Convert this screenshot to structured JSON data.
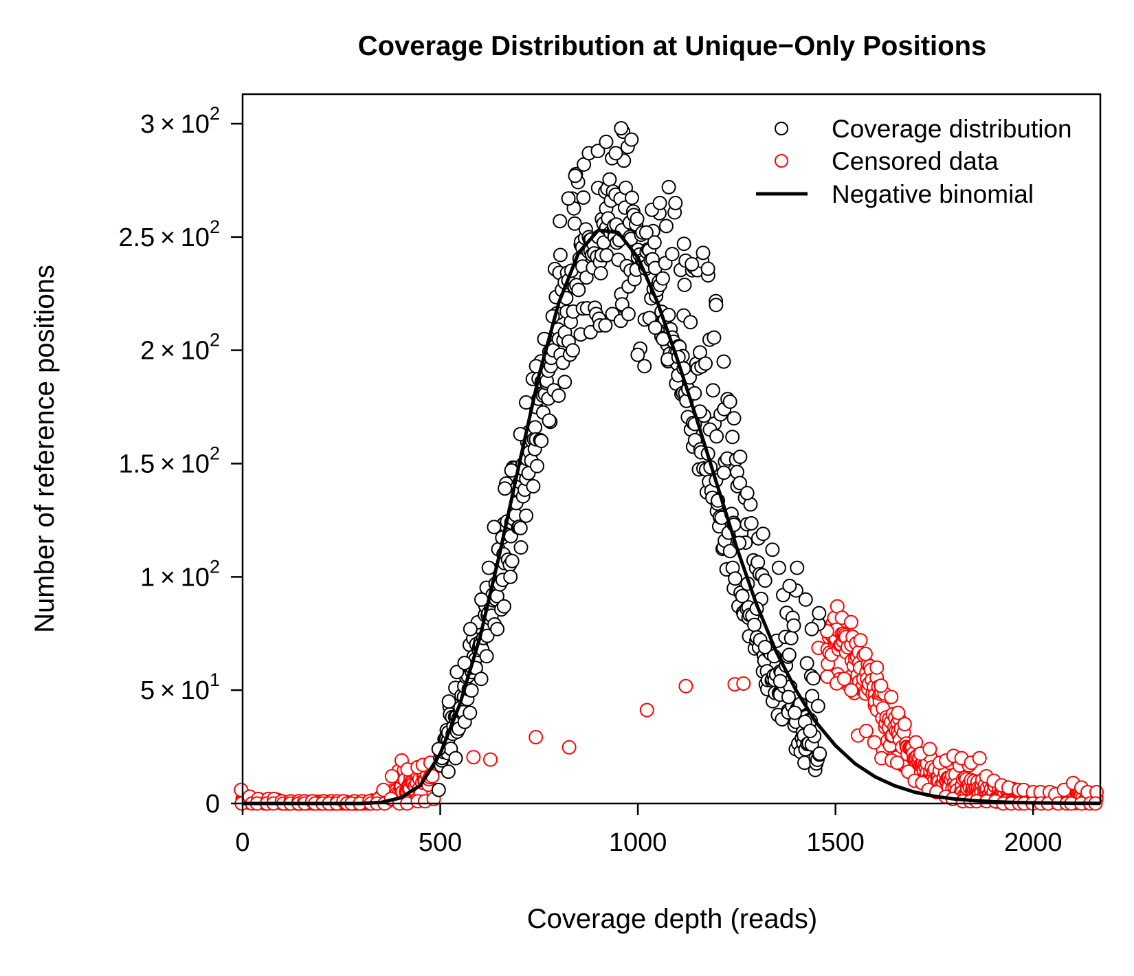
{
  "chart_data": {
    "type": "scatter",
    "title": "Coverage Distribution at Unique−Only Positions",
    "xlabel": "Coverage depth (reads)",
    "ylabel": "Number of reference positions",
    "xlim": [
      0,
      2170
    ],
    "ylim": [
      0,
      300
    ],
    "x_ticks": [
      0,
      500,
      1000,
      1500,
      2000
    ],
    "x_tick_labels": [
      "0",
      "500",
      "1000",
      "1500",
      "2000"
    ],
    "y_ticks": [
      0,
      50,
      100,
      150,
      200,
      250,
      300
    ],
    "y_tick_labels": [
      {
        "mantissa": "0",
        "exponent": ""
      },
      {
        "mantissa": "5",
        "exponent": "1"
      },
      {
        "mantissa": "1",
        "exponent": "2"
      },
      {
        "mantissa": "1.5",
        "exponent": "2"
      },
      {
        "mantissa": "2",
        "exponent": "2"
      },
      {
        "mantissa": "2.5",
        "exponent": "2"
      },
      {
        "mantissa": "3",
        "exponent": "2"
      }
    ],
    "grid": false,
    "legend_position": "top-right",
    "legend": [
      {
        "label": "Coverage distribution",
        "marker": "circle",
        "color": "#000000"
      },
      {
        "label": "Censored data",
        "marker": "circle",
        "color": "#ff0000"
      },
      {
        "label": "Negative binomial",
        "marker": "line",
        "color": "#000000"
      }
    ],
    "series": [
      {
        "name": "Coverage distribution",
        "color": "#000000",
        "x": [
          500,
          520,
          540,
          560,
          580,
          600,
          620,
          640,
          660,
          680,
          700,
          720,
          740,
          760,
          780,
          800,
          820,
          840,
          860,
          880,
          900,
          920,
          940,
          960,
          980,
          1000,
          1020,
          1040,
          1060,
          1080,
          1100,
          1120,
          1140,
          1160,
          1180,
          1200,
          1220,
          1240,
          1260,
          1280,
          1300,
          1320,
          1340,
          1360,
          1380,
          1400,
          1420,
          1440,
          1460
        ],
        "y": [
          20,
          28,
          37,
          47,
          58,
          70,
          83,
          97,
          110,
          124,
          138,
          152,
          166,
          180,
          193,
          205,
          217,
          228,
          237,
          244,
          250,
          254,
          255,
          253,
          250,
          244,
          236,
          227,
          217,
          205,
          194,
          181,
          168,
          155,
          142,
          129,
          116,
          104,
          93,
          82,
          72,
          63,
          55,
          48,
          41,
          36,
          30,
          26,
          22
        ],
        "y_high": [
          24,
          45,
          58,
          62,
          77,
          90,
          104,
          122,
          139,
          147,
          163,
          177,
          193,
          205,
          215,
          257,
          267,
          277,
          282,
          287,
          288,
          292,
          287,
          298,
          293,
          258,
          252,
          262,
          265,
          272,
          265,
          247,
          238,
          243,
          236,
          220,
          195,
          170,
          153,
          137,
          117,
          119,
          112,
          104,
          96,
          104,
          90,
          77,
          84
        ],
        "y_low": [
          6,
          14,
          20,
          36,
          40,
          55,
          65,
          77,
          87,
          100,
          113,
          127,
          140,
          160,
          169,
          180,
          186,
          200,
          207,
          208,
          211,
          211,
          216,
          213,
          216,
          198,
          193,
          210,
          205,
          196,
          197,
          192,
          181,
          173,
          165,
          162,
          146,
          123,
          115,
          97,
          86,
          69,
          65,
          54,
          47,
          40,
          36,
          32,
          43
        ]
      },
      {
        "name": "Censored data",
        "color": "#ff0000",
        "x": [
          0,
          20,
          40,
          60,
          80,
          100,
          120,
          140,
          160,
          180,
          200,
          220,
          240,
          260,
          280,
          300,
          320,
          340,
          360,
          380,
          400,
          420,
          440,
          460,
          480,
          1480,
          1500,
          1520,
          1540,
          1560,
          1580,
          1600,
          1620,
          1640,
          1660,
          1680,
          1700,
          1720,
          1740,
          1760,
          1780,
          1800,
          1820,
          1840,
          1860,
          1880,
          1900,
          1920,
          1940,
          1960,
          1980,
          2000,
          2020,
          2040,
          2060,
          2080,
          2100,
          2120,
          2140,
          2160
        ],
        "y": [
          2,
          1,
          1,
          1,
          1,
          0,
          0,
          0,
          0,
          0,
          0,
          0,
          0,
          0,
          0,
          0,
          0,
          1,
          2,
          4,
          7,
          8,
          9,
          10,
          12,
          68,
          72,
          74,
          70,
          62,
          55,
          48,
          42,
          36,
          30,
          25,
          20,
          16,
          14,
          12,
          10,
          9,
          8,
          7,
          6,
          5,
          5,
          4,
          4,
          3,
          3,
          2,
          2,
          2,
          2,
          2,
          2,
          2,
          2,
          2
        ],
        "y_high": [
          6,
          3,
          2,
          2,
          2,
          1,
          1,
          1,
          1,
          1,
          1,
          1,
          1,
          1,
          1,
          1,
          1,
          2,
          6,
          12,
          19,
          15,
          16,
          17,
          18,
          76,
          87,
          82,
          80,
          72,
          66,
          60,
          52,
          47,
          40,
          35,
          27,
          22,
          24,
          18,
          19,
          21,
          20,
          18,
          20,
          12,
          10,
          8,
          7,
          6,
          6,
          5,
          5,
          5,
          4,
          6,
          9,
          7,
          5,
          5
        ],
        "y_low": [
          0,
          0,
          0,
          0,
          0,
          0,
          0,
          0,
          0,
          0,
          0,
          0,
          0,
          0,
          0,
          0,
          0,
          0,
          0,
          2,
          0,
          0,
          1,
          1,
          2,
          56,
          53,
          55,
          50,
          30,
          32,
          27,
          20,
          19,
          18,
          14,
          10,
          9,
          6,
          5,
          3,
          2,
          1,
          1,
          1,
          1,
          1,
          0,
          0,
          0,
          0,
          0,
          0,
          0,
          0,
          0,
          0,
          0,
          0,
          0
        ]
      },
      {
        "name": "Negative binomial",
        "color": "#000000",
        "x": [
          0,
          50,
          100,
          150,
          200,
          250,
          300,
          350,
          400,
          450,
          500,
          550,
          600,
          650,
          700,
          750,
          800,
          850,
          900,
          950,
          1000,
          1050,
          1100,
          1150,
          1200,
          1250,
          1300,
          1350,
          1400,
          1450,
          1500,
          1550,
          1600,
          1650,
          1700,
          1750,
          1800,
          1850,
          1900,
          1950,
          2000,
          2050,
          2100,
          2150,
          2170
        ],
        "y": [
          0,
          0,
          0,
          0,
          0,
          0,
          0,
          0.5,
          2.5,
          8,
          22,
          44,
          73,
          110,
          150,
          189,
          221,
          243,
          253,
          252,
          241,
          221,
          196,
          169,
          141,
          113,
          88,
          67,
          50,
          36,
          25.5,
          17.5,
          11.8,
          7.8,
          5,
          3.2,
          2,
          1.3,
          0.8,
          0.5,
          0.3,
          0.2,
          0.1,
          0.05,
          0.04
        ]
      }
    ]
  }
}
